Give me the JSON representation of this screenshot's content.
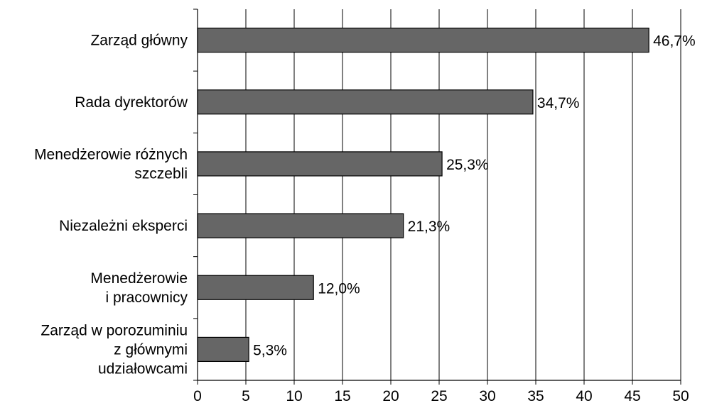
{
  "chart_data": {
    "type": "bar",
    "orientation": "horizontal",
    "categories": [
      [
        "Zarząd główny"
      ],
      [
        "Rada dyrektorów"
      ],
      [
        "Menedżerowie różnych",
        "szczebli"
      ],
      [
        "Niezależni eksperci"
      ],
      [
        "Menedżerowie",
        "i pracownicy"
      ],
      [
        "Zarząd w porozuminiu",
        "z głównymi",
        "udziałowcami"
      ]
    ],
    "values": [
      46.7,
      34.7,
      25.3,
      21.3,
      12.0,
      5.3
    ],
    "value_labels": [
      "46,7%",
      "34,7%",
      "25,3%",
      "21,3%",
      "12,0%",
      "5,3%"
    ],
    "xlim": [
      0,
      50
    ],
    "x_ticks": [
      0,
      5,
      10,
      15,
      20,
      25,
      30,
      35,
      40,
      45,
      50
    ],
    "x_tick_labels": [
      "0",
      "5",
      "10",
      "15",
      "20",
      "25",
      "30",
      "35",
      "40",
      "45",
      "50"
    ],
    "grid": "vertical",
    "bar_color": "#666666",
    "title": "",
    "xlabel": "",
    "ylabel": ""
  }
}
